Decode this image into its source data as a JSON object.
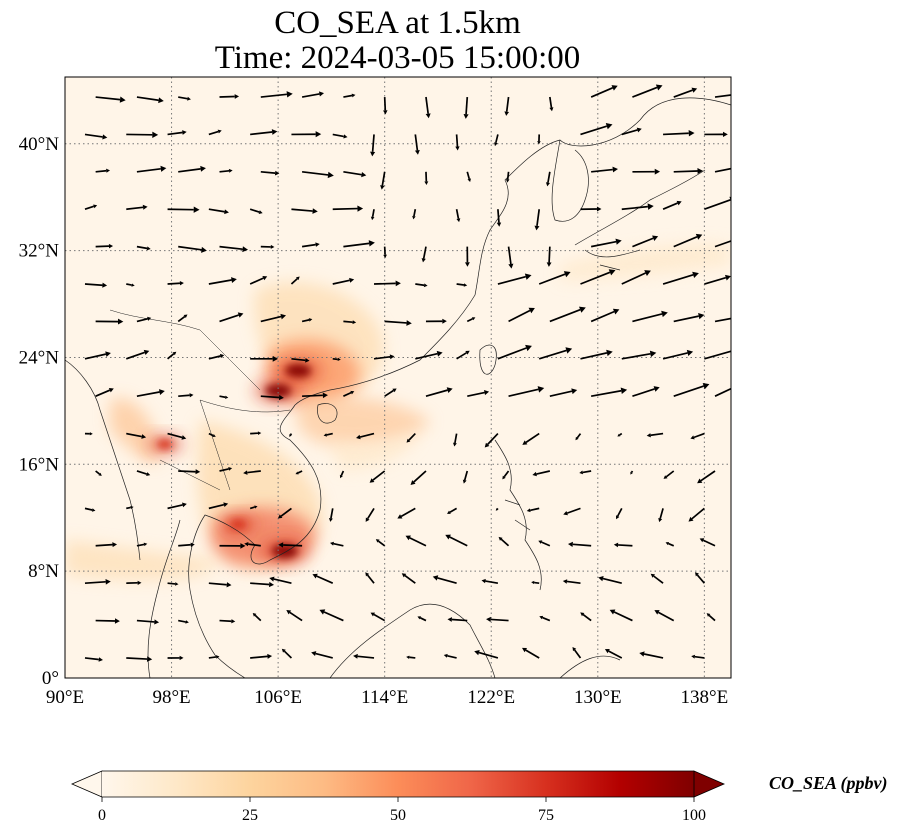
{
  "title": {
    "line1": "CO_SEA at 1.5km",
    "line2": "Time: 2024-03-05 15:00:00"
  },
  "map": {
    "lon_range": [
      90,
      140
    ],
    "lat_range": [
      0,
      45
    ],
    "x_ticks": [
      "90°E",
      "98°E",
      "106°E",
      "114°E",
      "122°E",
      "130°E",
      "138°E"
    ],
    "x_tick_values": [
      90,
      98,
      106,
      114,
      122,
      130,
      138
    ],
    "y_ticks": [
      "0°",
      "8°N",
      "16°N",
      "24°N",
      "32°N",
      "40°N"
    ],
    "y_tick_values": [
      0,
      8,
      16,
      24,
      32,
      40
    ],
    "gridlines": "dotted",
    "background_color": "#fff5e8",
    "plume_hotspots": [
      {
        "lon": 106.5,
        "lat": 9.5,
        "level": "high"
      },
      {
        "lon": 107.5,
        "lat": 23.0,
        "level": "high"
      },
      {
        "lon": 106.0,
        "lat": 21.5,
        "level": "high"
      },
      {
        "lon": 103.0,
        "lat": 11.5,
        "level": "medium"
      },
      {
        "lon": 97.5,
        "lat": 17.5,
        "level": "medium"
      }
    ]
  },
  "colorbar": {
    "title": "CO_SEA (ppbv)",
    "ticks": [
      "0",
      "25",
      "50",
      "75",
      "100"
    ],
    "tick_values": [
      0,
      25,
      50,
      75,
      100
    ],
    "extend": "both",
    "colormap": "OrRd",
    "colors": [
      "#fff7ec",
      "#fee8c8",
      "#fdd49e",
      "#fdbb84",
      "#fc8d59",
      "#ef6548",
      "#d7301f",
      "#b30000",
      "#7f0000"
    ]
  }
}
